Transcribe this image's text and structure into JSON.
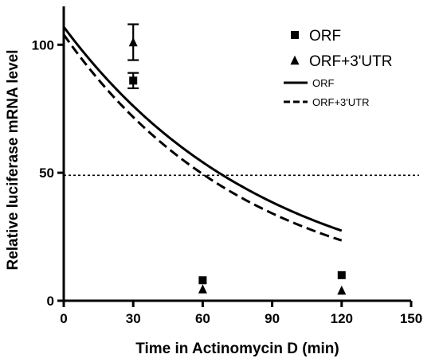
{
  "chart_data": {
    "type": "scatter",
    "xlabel": "Time in Actinomycin D (min)",
    "ylabel": "Relative luciferase mRNA level",
    "xlim": [
      0,
      150
    ],
    "ylim": [
      0,
      115
    ],
    "x_ticks": [
      "0",
      "30",
      "60",
      "90",
      "120",
      "150"
    ],
    "y_ticks": [
      "0",
      "50",
      "100"
    ],
    "reference_line": {
      "y": 49,
      "style": "dotted"
    },
    "series": [
      {
        "name": "ORF",
        "kind": "points",
        "marker": "square",
        "points": [
          {
            "x": 30,
            "y": 86,
            "err": 3
          },
          {
            "x": 60,
            "y": 8,
            "err": 0
          },
          {
            "x": 120,
            "y": 10,
            "err": 0
          }
        ]
      },
      {
        "name": "ORF+3'UTR",
        "kind": "points",
        "marker": "triangle",
        "points": [
          {
            "x": 30,
            "y": 101,
            "err": 7
          },
          {
            "x": 60,
            "y": 4.5,
            "err": 0
          },
          {
            "x": 120,
            "y": 4,
            "err": 0
          }
        ]
      },
      {
        "name": "ORF",
        "kind": "fit",
        "style": "solid",
        "model": "exponential decay",
        "y0": 107,
        "half_life_min": 61
      },
      {
        "name": "ORF+3'UTR",
        "kind": "fit",
        "style": "dashed",
        "model": "exponential decay",
        "y0": 104,
        "half_life_min": 56
      }
    ],
    "legend": {
      "placement": "top-right",
      "entries": [
        "ORF",
        "ORF+3'UTR",
        "ORF",
        "ORF+3'UTR"
      ]
    },
    "grid": false
  }
}
